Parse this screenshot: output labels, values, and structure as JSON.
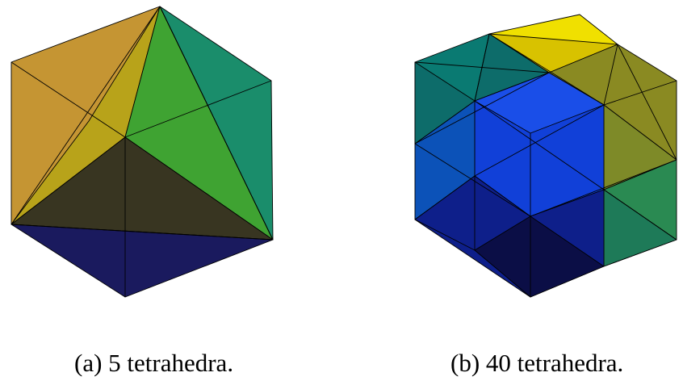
{
  "figures": [
    {
      "caption": "(a) 5 tetrahedra.",
      "tetrahedra_count": 5,
      "colors": {
        "left_top": "#C59533",
        "left_mid": "#B8A31A",
        "right_top": "#3FA332",
        "right_side": "#1A8D6B",
        "center_dark": "#383521",
        "bottom": "#1A1A5E"
      }
    },
    {
      "caption": "(b) 40 tetrahedra.",
      "tetrahedra_count": 40,
      "colors": {
        "top_yellow": "#F0E000",
        "top_yellow_dark": "#D8C200",
        "olive": "#8A8A22",
        "olive_light": "#7E8A28",
        "teal": "#0A7A72",
        "teal_dark": "#0D6C6A",
        "blue": "#1140D8",
        "blue_bright": "#1A4EE8",
        "blue_side": "#0C52B8",
        "green": "#2A8A52",
        "green_dark": "#1E7A58",
        "navy": "#0E1F8A",
        "navy_dark": "#0B0E46"
      }
    }
  ]
}
